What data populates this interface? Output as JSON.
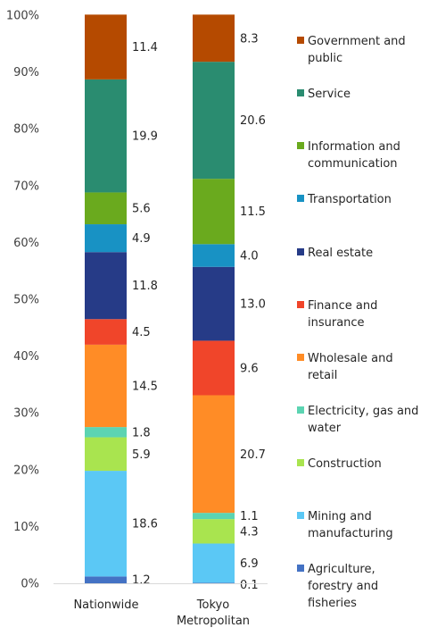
{
  "chart_data": {
    "type": "bar",
    "stacked": true,
    "normalized": true,
    "categories": [
      "Nationwide",
      "Tokyo Metropolitan"
    ],
    "category_display": [
      [
        "Nationwide"
      ],
      [
        "Tokyo",
        "Metropolitan"
      ]
    ],
    "ylim": [
      0,
      100
    ],
    "yticks": [
      0,
      10,
      20,
      30,
      40,
      50,
      60,
      70,
      80,
      90,
      100
    ],
    "ytick_labels": [
      "0%",
      "10%",
      "20%",
      "30%",
      "40%",
      "50%",
      "60%",
      "70%",
      "80%",
      "90%",
      "100%"
    ],
    "grid": false,
    "legend_position": "right",
    "series": [
      {
        "name": "Agriculture, forestry and fisheries",
        "legend_lines": [
          "Agriculture,",
          "forestry and",
          "fisheries"
        ],
        "color": "#4472C4",
        "values": [
          1.2,
          0.1
        ]
      },
      {
        "name": "Mining and manufacturing",
        "legend_lines": [
          "Mining and",
          "manufacturing"
        ],
        "color": "#5BC8F5",
        "values": [
          18.6,
          6.9
        ]
      },
      {
        "name": "Construction",
        "legend_lines": [
          "Construction"
        ],
        "color": "#A9E44F",
        "values": [
          5.9,
          4.3
        ]
      },
      {
        "name": "Electricity, gas and water",
        "legend_lines": [
          "Electricity, gas and",
          "water"
        ],
        "color": "#5CD4B2",
        "values": [
          1.8,
          1.1
        ]
      },
      {
        "name": "Wholesale and retail",
        "legend_lines": [
          "Wholesale and",
          "retail"
        ],
        "color": "#FF8C26",
        "values": [
          14.5,
          20.7
        ]
      },
      {
        "name": "Finance and insurance",
        "legend_lines": [
          "Finance and",
          "insurance"
        ],
        "color": "#F0452A",
        "values": [
          4.5,
          9.6
        ]
      },
      {
        "name": "Real estate",
        "legend_lines": [
          "Real estate"
        ],
        "color": "#263B87",
        "values": [
          11.8,
          13.0
        ]
      },
      {
        "name": "Transportation",
        "legend_lines": [
          "Transportation"
        ],
        "color": "#1892C4",
        "values": [
          4.9,
          4.0
        ]
      },
      {
        "name": "Information and communication",
        "legend_lines": [
          "Information and",
          "communication"
        ],
        "color": "#6AAA1E",
        "values": [
          5.6,
          11.5
        ]
      },
      {
        "name": "Service",
        "legend_lines": [
          "Service"
        ],
        "color": "#2A8C70",
        "values": [
          19.9,
          20.6
        ]
      },
      {
        "name": "Government and public",
        "legend_lines": [
          "Government and",
          "public"
        ],
        "color": "#B54A00",
        "values": [
          11.4,
          8.3
        ]
      }
    ]
  }
}
